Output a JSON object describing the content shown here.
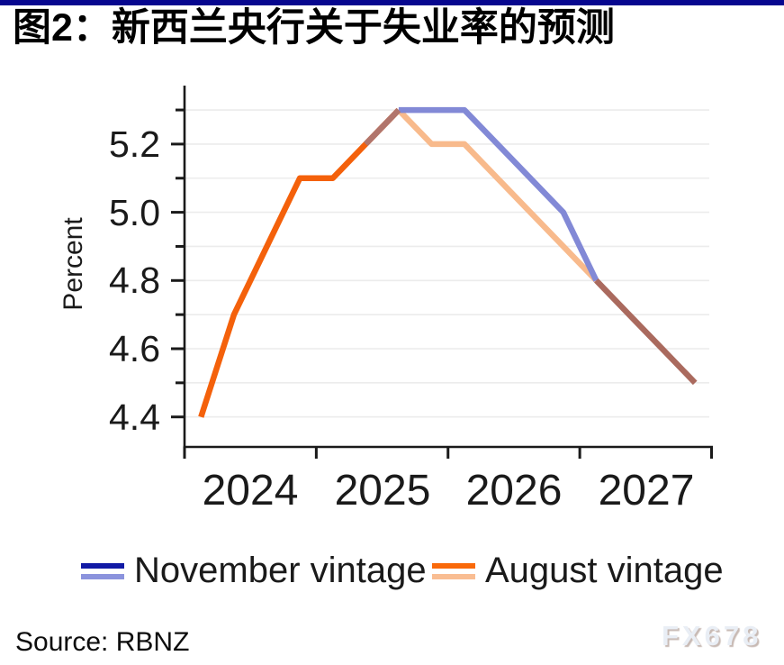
{
  "header": {
    "title": "图2：新西兰央行关于失业率的预测"
  },
  "style": {
    "accent_bar": "#07078f",
    "axis": "#1a1a1a",
    "grid": "#ececec",
    "text": "#1a1a1a",
    "watermark_gray": "#e9eef5"
  },
  "chart_data": {
    "type": "line",
    "title": "图2：新西兰央行关于失业率的预测",
    "xlabel": "",
    "ylabel": "Percent",
    "ylim": [
      4.3,
      5.37
    ],
    "grid": "on",
    "legend_position": "bottom",
    "x_years": [
      "2024",
      "2025",
      "2026",
      "2027"
    ],
    "x": [
      "2024Q1",
      "2024Q2",
      "2024Q3",
      "2024Q4",
      "2025Q1",
      "2025Q2",
      "2025Q3",
      "2025Q4",
      "2026Q1",
      "2026Q2",
      "2026Q3",
      "2026Q4",
      "2027Q1",
      "2027Q2",
      "2027Q3",
      "2027Q4"
    ],
    "y_tick_labels": [
      "5.2",
      "5.0",
      "4.8",
      "4.6",
      "4.4"
    ],
    "y_ticks_major": [
      5.2,
      5.0,
      4.8,
      4.6,
      4.4
    ],
    "y_ticks_minor": [
      5.3,
      5.1,
      4.9,
      4.7,
      4.5
    ],
    "gridlines": [
      4.4,
      4.5,
      4.6,
      4.7,
      4.8,
      4.9,
      5.0,
      5.1,
      5.2,
      5.3
    ],
    "series": [
      {
        "name": "November vintage",
        "colors": {
          "actual": "#111aa5",
          "forecast": "#8289d6"
        },
        "values": [
          4.4,
          4.7,
          4.9,
          5.1,
          5.1,
          5.2,
          5.3,
          5.3,
          5.3,
          5.2,
          5.1,
          5.0,
          4.8,
          4.7,
          4.6,
          4.5
        ]
      },
      {
        "name": "August vintage",
        "colors": {
          "actual": "#f4610b",
          "forecast": "#f8ba8c"
        },
        "values": [
          4.4,
          4.7,
          4.9,
          5.1,
          5.1,
          5.2,
          5.3,
          5.2,
          5.2,
          5.1,
          5.0,
          4.9,
          4.8,
          4.7,
          4.6,
          4.5
        ]
      }
    ],
    "paint": [
      {
        "series": 1,
        "from": 0,
        "to": 6,
        "color": "#f4610b",
        "name": "common-actual-line"
      },
      {
        "series": 1,
        "from": 6,
        "to": 12,
        "color": "#f8ba8c",
        "name": "august-forecast-line"
      },
      {
        "series": 0,
        "from": 6,
        "to": 12,
        "color": "#8289d6",
        "name": "november-forecast-line"
      },
      {
        "series": 0,
        "from": 5,
        "to": 6,
        "color": "#b1756c",
        "name": "overlap-rise-segment"
      },
      {
        "series": 0,
        "from": 12,
        "to": 15,
        "color": "#aa6a5e",
        "name": "merged-tail-line"
      }
    ]
  },
  "legend": {
    "items": [
      {
        "label": "November vintage",
        "color_top": "#111aa5",
        "color_bottom": "#8b93dd"
      },
      {
        "label": "August vintage",
        "color_top": "#f9690a",
        "color_bottom": "#f9bd92"
      }
    ]
  },
  "footer": {
    "source": "Source: RBNZ",
    "watermark": "FX678"
  }
}
